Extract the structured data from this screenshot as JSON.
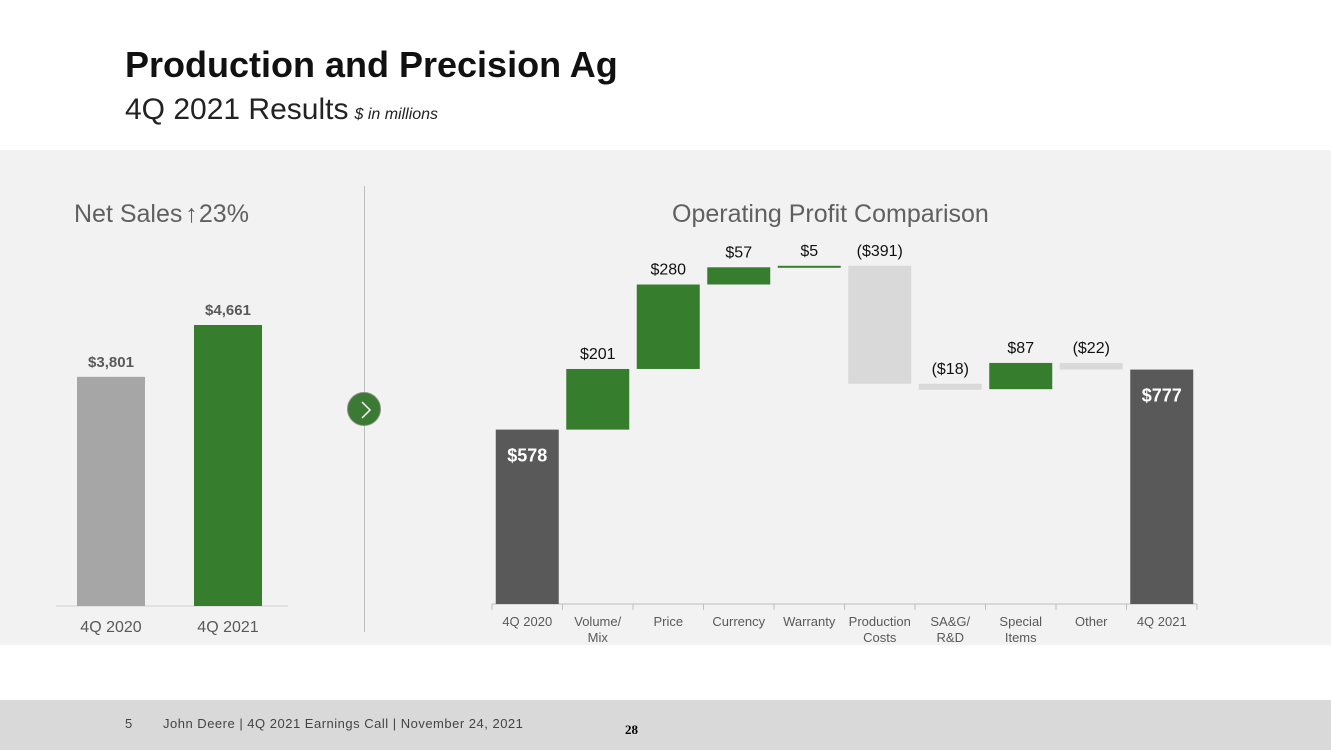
{
  "header": {
    "title": "Production and Precision Ag",
    "subtitle": "4Q 2021 Results",
    "units": "$ in millions"
  },
  "net_sales": {
    "heading_prefix": "Net Sales",
    "heading_arrow": "↑",
    "heading_change": "23%"
  },
  "operating_profit": {
    "heading": "Operating Profit Comparison"
  },
  "nav": {
    "next_icon": "chevron-right-icon"
  },
  "footer": {
    "slide_number": "5",
    "text": "John Deere | 4Q 2021 Earnings Call | November 24, 2021",
    "page": "28"
  },
  "colors": {
    "green": "#377d2e",
    "dark": "#595959",
    "gray_bar": "#a6a6a6",
    "light_bar": "#d9d9d9"
  },
  "chart_data": [
    {
      "type": "bar",
      "title": "Net Sales ↑23%",
      "categories": [
        "4Q 2020",
        "4Q 2021"
      ],
      "values": [
        3801,
        4661
      ],
      "labels": [
        "$3,801",
        "$4,661"
      ],
      "colors": [
        "#a6a6a6",
        "#377d2e"
      ],
      "ylim": [
        0,
        4661
      ]
    },
    {
      "type": "waterfall",
      "title": "Operating Profit Comparison",
      "categories": [
        "4Q 2020",
        "Volume/ Mix",
        "Price",
        "Currency",
        "Warranty",
        "Production Costs",
        "SA&G/ R&D",
        "Special Items",
        "Other",
        "4Q 2021"
      ],
      "values": [
        578,
        201,
        280,
        57,
        5,
        -391,
        -18,
        87,
        -22,
        777
      ],
      "labels": [
        "$578",
        "$201",
        "$280",
        "$57",
        "$5",
        "($391)",
        "($18)",
        "$87",
        "($22)",
        "$777"
      ],
      "kinds": [
        "total",
        "delta",
        "delta",
        "delta",
        "delta",
        "delta",
        "delta",
        "delta",
        "delta",
        "total"
      ],
      "ylim": [
        0,
        1121
      ]
    }
  ]
}
